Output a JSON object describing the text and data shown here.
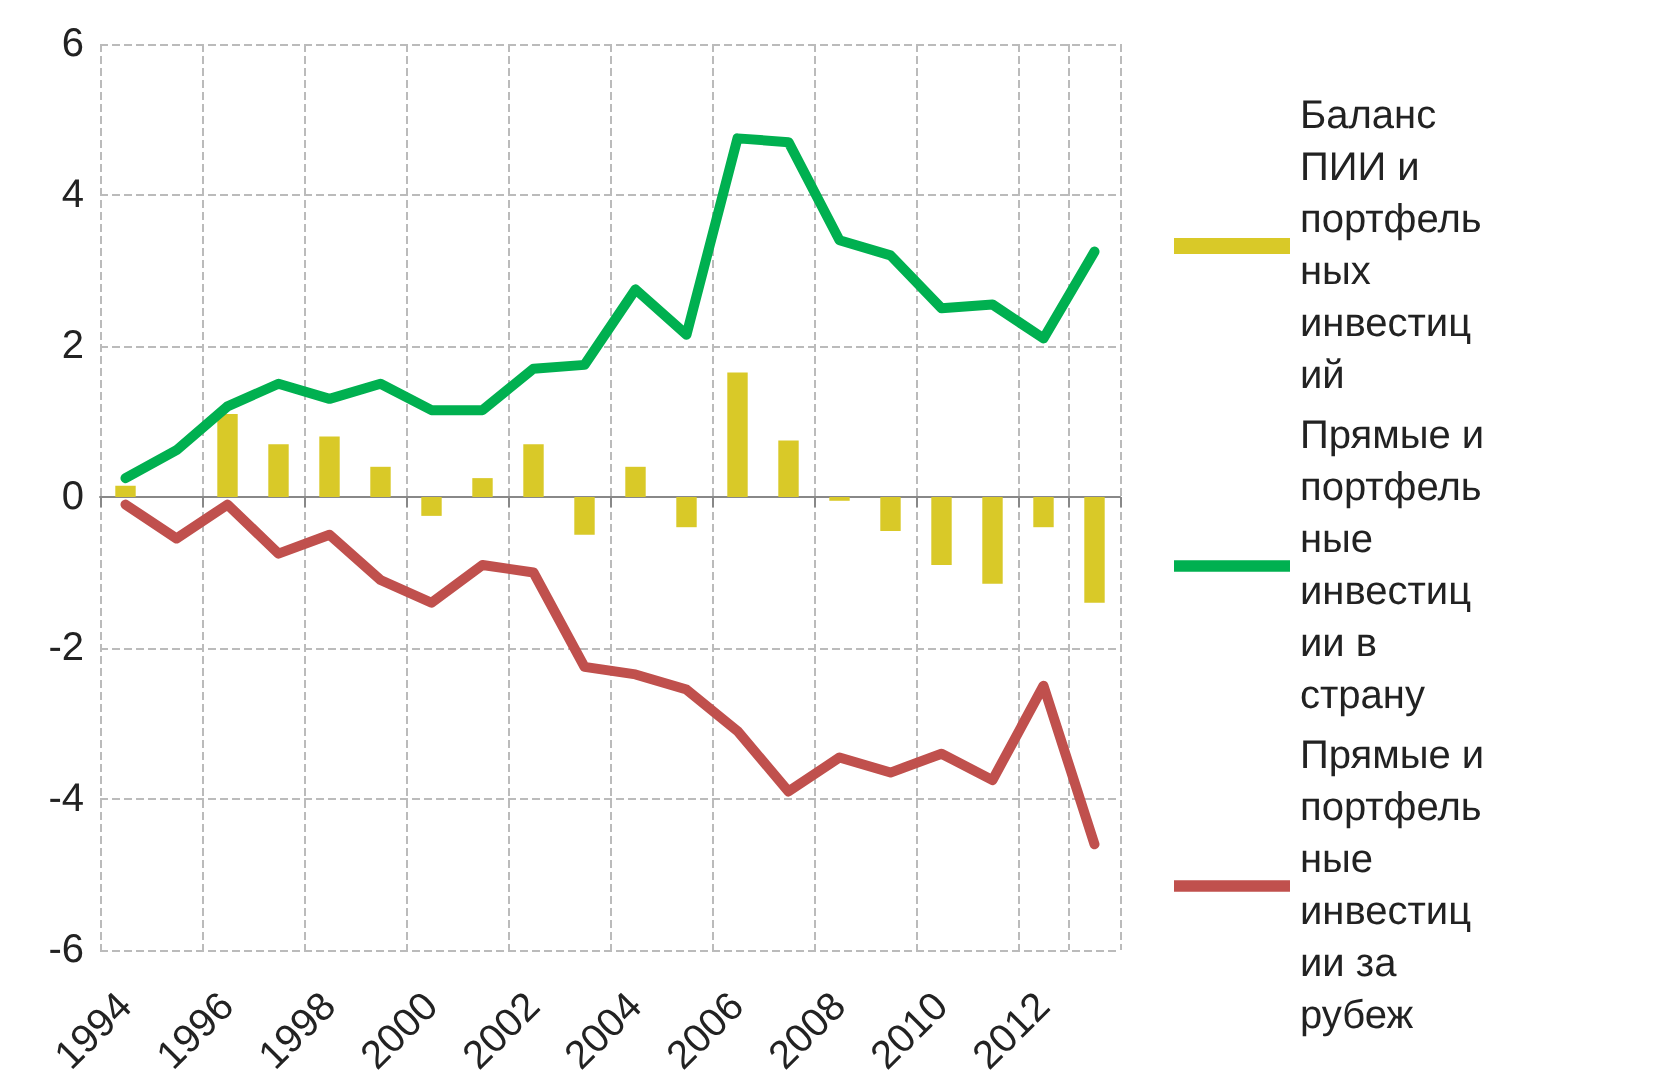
{
  "chart_data": {
    "type": "bar",
    "categories": [
      "1994",
      null,
      "1996",
      null,
      "1998",
      null,
      "2000",
      null,
      "2002",
      null,
      "2004",
      null,
      "2006",
      null,
      "2008",
      null,
      "2010",
      null,
      "2012",
      null
    ],
    "series": [
      {
        "name": "Баланс ПИИ и портфельных инвестиций",
        "color": "#d9c928",
        "values": [
          0.15,
          0,
          1.1,
          0.7,
          0.8,
          0.4,
          -0.25,
          0.25,
          0.7,
          -0.5,
          0.4,
          -0.4,
          1.65,
          0.75,
          -0.05,
          -0.45,
          -0.9,
          -1.15,
          -0.4,
          -1.4
        ]
      },
      {
        "name": "Прямые и портфельные инвестиции в страну",
        "type": "line",
        "color": "#00b050",
        "values": [
          0.25,
          0.62,
          1.2,
          1.5,
          1.3,
          1.5,
          1.15,
          1.15,
          1.7,
          1.75,
          2.75,
          2.15,
          4.75,
          4.7,
          3.4,
          3.2,
          2.5,
          2.55,
          2.1,
          3.25
        ]
      },
      {
        "name": "Прямые и портфельные инвестиции за рубеж",
        "type": "line",
        "color": "#c0504d",
        "values": [
          -0.1,
          -0.55,
          -0.1,
          -0.75,
          -0.5,
          -1.1,
          -1.4,
          -0.9,
          -1.0,
          -2.25,
          -2.35,
          -2.55,
          -3.1,
          -3.9,
          -3.45,
          -3.65,
          -3.4,
          -3.75,
          -2.5,
          -4.6
        ]
      }
    ],
    "ylim": [
      -6,
      6
    ],
    "yticks": [
      -6,
      -4,
      -2,
      0,
      2,
      4,
      6
    ],
    "grid": true,
    "legend": "right",
    "marker": "none",
    "line_style": "solid"
  }
}
